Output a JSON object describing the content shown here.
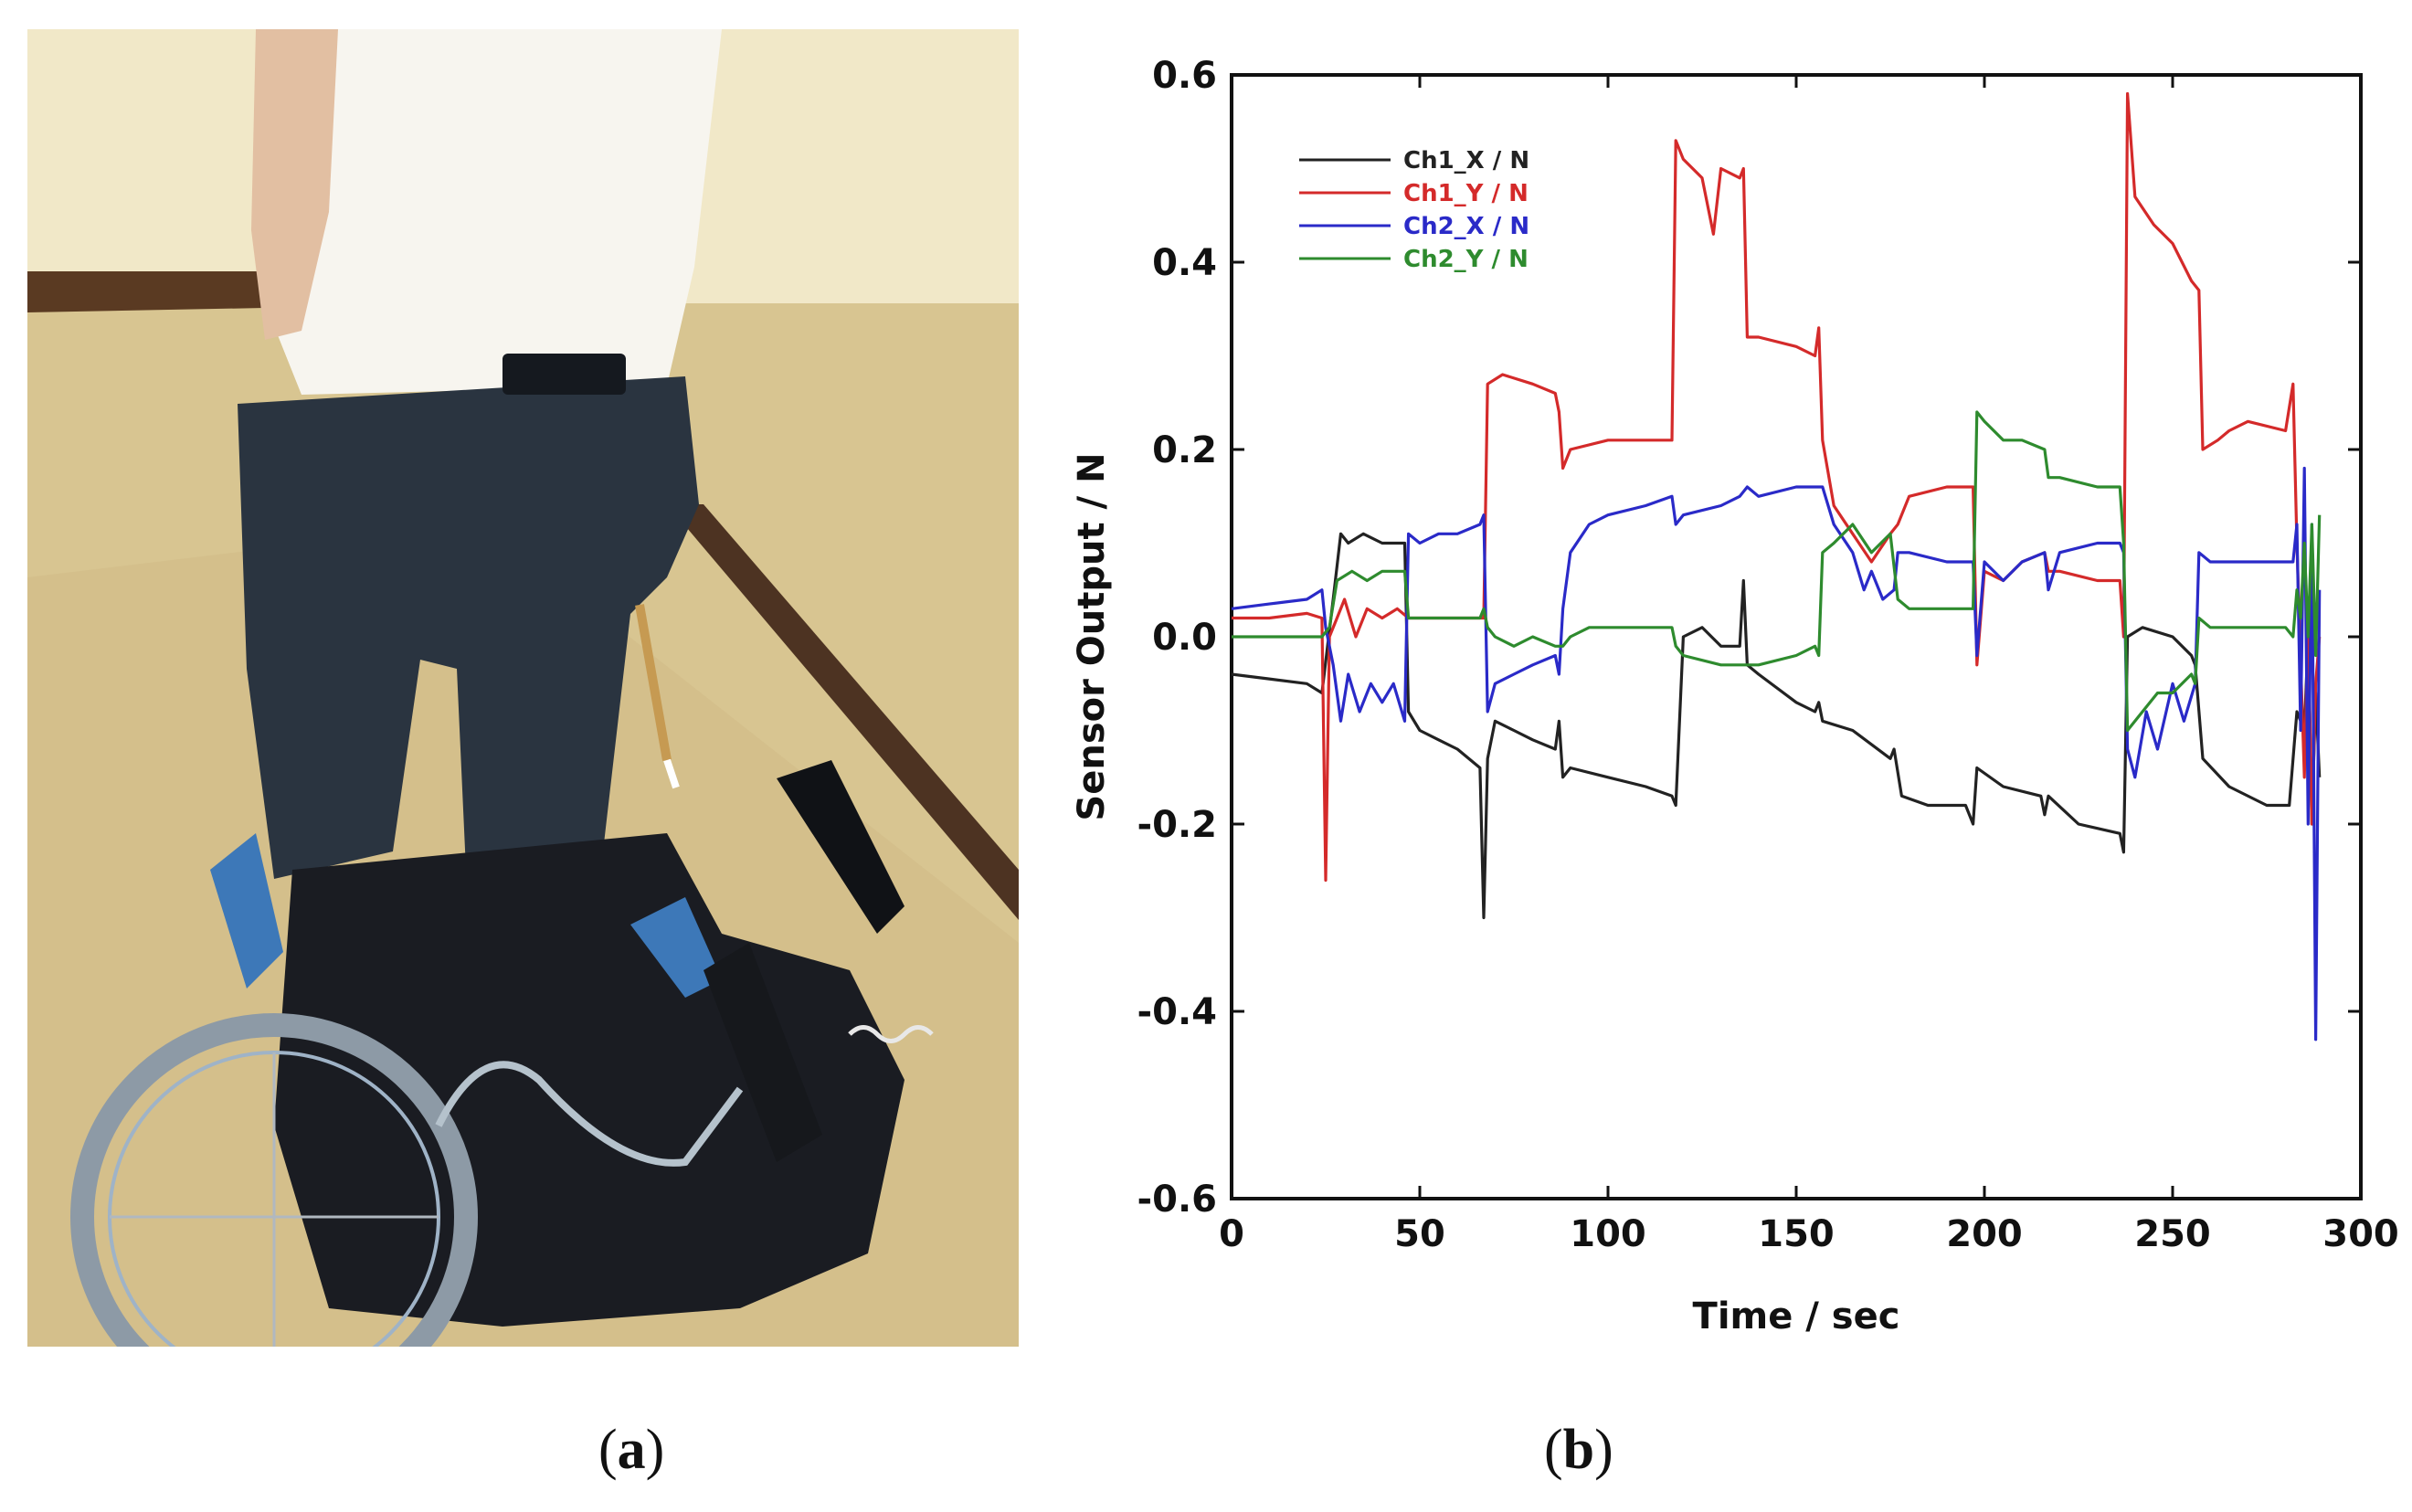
{
  "panels": {
    "a": {
      "caption": "a"
    },
    "b": {
      "caption": "b"
    }
  },
  "photo": {
    "description_icon": "photo-icon",
    "colors": {
      "floor": "#d9c792",
      "wall": "#f0e6c4",
      "shirt": "#f6f4ee",
      "jeans": "#2a3440",
      "chair": "#1a1c22",
      "frame": "#3d78b8"
    }
  },
  "chart_data": {
    "type": "line",
    "xlabel": "Time / sec",
    "ylabel": "Sensor Output / N",
    "xlim": [
      0,
      300
    ],
    "ylim": [
      -0.6,
      0.6
    ],
    "xticks": [
      "0",
      "50",
      "100",
      "150",
      "200",
      "250",
      "300"
    ],
    "yticks": [
      "0.6",
      "0.4",
      "0.2",
      "0.0",
      "-0.2",
      "-0.4",
      "-0.6"
    ],
    "grid": false,
    "legend_position": "top-left",
    "series": [
      {
        "name": "Ch1_X / N",
        "color": "#222222",
        "points": [
          [
            0,
            -0.04
          ],
          [
            10,
            -0.045
          ],
          [
            20,
            -0.05
          ],
          [
            24,
            -0.06
          ],
          [
            27,
            0.04
          ],
          [
            29,
            0.11
          ],
          [
            31,
            0.1
          ],
          [
            35,
            0.11
          ],
          [
            40,
            0.1
          ],
          [
            46,
            0.1
          ],
          [
            47,
            -0.08
          ],
          [
            50,
            -0.1
          ],
          [
            55,
            -0.11
          ],
          [
            60,
            -0.12
          ],
          [
            66,
            -0.14
          ],
          [
            67,
            -0.3
          ],
          [
            68,
            -0.13
          ],
          [
            70,
            -0.09
          ],
          [
            75,
            -0.1
          ],
          [
            80,
            -0.11
          ],
          [
            86,
            -0.12
          ],
          [
            87,
            -0.09
          ],
          [
            88,
            -0.15
          ],
          [
            90,
            -0.14
          ],
          [
            100,
            -0.15
          ],
          [
            110,
            -0.16
          ],
          [
            117,
            -0.17
          ],
          [
            118,
            -0.18
          ],
          [
            120,
            0.0
          ],
          [
            125,
            0.01
          ],
          [
            130,
            -0.01
          ],
          [
            135,
            -0.01
          ],
          [
            136,
            0.06
          ],
          [
            137,
            -0.03
          ],
          [
            140,
            -0.04
          ],
          [
            150,
            -0.07
          ],
          [
            155,
            -0.08
          ],
          [
            156,
            -0.07
          ],
          [
            157,
            -0.09
          ],
          [
            165,
            -0.1
          ],
          [
            175,
            -0.13
          ],
          [
            176,
            -0.12
          ],
          [
            178,
            -0.17
          ],
          [
            185,
            -0.18
          ],
          [
            195,
            -0.18
          ],
          [
            197,
            -0.2
          ],
          [
            198,
            -0.14
          ],
          [
            205,
            -0.16
          ],
          [
            215,
            -0.17
          ],
          [
            216,
            -0.19
          ],
          [
            217,
            -0.17
          ],
          [
            225,
            -0.2
          ],
          [
            236,
            -0.21
          ],
          [
            237,
            -0.23
          ],
          [
            238,
            0.0
          ],
          [
            242,
            0.01
          ],
          [
            250,
            0.0
          ],
          [
            255,
            -0.02
          ],
          [
            256,
            -0.03
          ],
          [
            258,
            -0.13
          ],
          [
            265,
            -0.16
          ],
          [
            275,
            -0.18
          ],
          [
            281,
            -0.18
          ],
          [
            283,
            -0.08
          ],
          [
            285,
            -0.1
          ],
          [
            286,
            0.0
          ],
          [
            287,
            -0.2
          ],
          [
            288,
            -0.06
          ],
          [
            289,
            -0.15
          ]
        ]
      },
      {
        "name": "Ch1_Y / N",
        "color": "#d42a2a",
        "points": [
          [
            0,
            0.02
          ],
          [
            10,
            0.02
          ],
          [
            20,
            0.025
          ],
          [
            24,
            0.02
          ],
          [
            25,
            -0.26
          ],
          [
            26,
            0.0
          ],
          [
            28,
            0.02
          ],
          [
            30,
            0.04
          ],
          [
            33,
            0.0
          ],
          [
            36,
            0.03
          ],
          [
            40,
            0.02
          ],
          [
            44,
            0.03
          ],
          [
            47,
            0.02
          ],
          [
            55,
            0.02
          ],
          [
            65,
            0.02
          ],
          [
            67,
            0.02
          ],
          [
            68,
            0.27
          ],
          [
            72,
            0.28
          ],
          [
            80,
            0.27
          ],
          [
            86,
            0.26
          ],
          [
            87,
            0.24
          ],
          [
            88,
            0.18
          ],
          [
            90,
            0.2
          ],
          [
            100,
            0.21
          ],
          [
            110,
            0.21
          ],
          [
            117,
            0.21
          ],
          [
            118,
            0.53
          ],
          [
            120,
            0.51
          ],
          [
            125,
            0.49
          ],
          [
            128,
            0.43
          ],
          [
            130,
            0.5
          ],
          [
            135,
            0.49
          ],
          [
            136,
            0.5
          ],
          [
            137,
            0.32
          ],
          [
            140,
            0.32
          ],
          [
            150,
            0.31
          ],
          [
            155,
            0.3
          ],
          [
            156,
            0.33
          ],
          [
            157,
            0.21
          ],
          [
            160,
            0.14
          ],
          [
            165,
            0.11
          ],
          [
            170,
            0.08
          ],
          [
            175,
            0.11
          ],
          [
            177,
            0.12
          ],
          [
            180,
            0.15
          ],
          [
            190,
            0.16
          ],
          [
            197,
            0.16
          ],
          [
            198,
            -0.03
          ],
          [
            200,
            0.07
          ],
          [
            205,
            0.06
          ],
          [
            210,
            0.08
          ],
          [
            216,
            0.09
          ],
          [
            217,
            0.07
          ],
          [
            220,
            0.07
          ],
          [
            230,
            0.06
          ],
          [
            236,
            0.06
          ],
          [
            237,
            0.0
          ],
          [
            238,
            0.58
          ],
          [
            240,
            0.47
          ],
          [
            245,
            0.44
          ],
          [
            250,
            0.42
          ],
          [
            255,
            0.38
          ],
          [
            257,
            0.37
          ],
          [
            258,
            0.2
          ],
          [
            262,
            0.21
          ],
          [
            265,
            0.22
          ],
          [
            270,
            0.23
          ],
          [
            280,
            0.22
          ],
          [
            282,
            0.27
          ],
          [
            283,
            0.1
          ],
          [
            285,
            -0.15
          ],
          [
            286,
            0.02
          ],
          [
            287,
            -0.2
          ],
          [
            288,
            -0.05
          ],
          [
            289,
            0.0
          ]
        ]
      },
      {
        "name": "Ch2_X / N",
        "color": "#2a2ac8",
        "points": [
          [
            0,
            0.03
          ],
          [
            10,
            0.035
          ],
          [
            20,
            0.04
          ],
          [
            24,
            0.05
          ],
          [
            25,
            0.01
          ],
          [
            27,
            -0.03
          ],
          [
            29,
            -0.09
          ],
          [
            31,
            -0.04
          ],
          [
            34,
            -0.08
          ],
          [
            37,
            -0.05
          ],
          [
            40,
            -0.07
          ],
          [
            43,
            -0.05
          ],
          [
            46,
            -0.09
          ],
          [
            47,
            0.11
          ],
          [
            50,
            0.1
          ],
          [
            55,
            0.11
          ],
          [
            60,
            0.11
          ],
          [
            66,
            0.12
          ],
          [
            67,
            0.13
          ],
          [
            68,
            -0.08
          ],
          [
            70,
            -0.05
          ],
          [
            75,
            -0.04
          ],
          [
            80,
            -0.03
          ],
          [
            86,
            -0.02
          ],
          [
            87,
            -0.04
          ],
          [
            88,
            0.03
          ],
          [
            90,
            0.09
          ],
          [
            95,
            0.12
          ],
          [
            100,
            0.13
          ],
          [
            110,
            0.14
          ],
          [
            117,
            0.15
          ],
          [
            118,
            0.12
          ],
          [
            120,
            0.13
          ],
          [
            130,
            0.14
          ],
          [
            135,
            0.15
          ],
          [
            137,
            0.16
          ],
          [
            140,
            0.15
          ],
          [
            150,
            0.16
          ],
          [
            155,
            0.16
          ],
          [
            157,
            0.16
          ],
          [
            160,
            0.12
          ],
          [
            165,
            0.09
          ],
          [
            168,
            0.05
          ],
          [
            170,
            0.07
          ],
          [
            173,
            0.04
          ],
          [
            176,
            0.05
          ],
          [
            177,
            0.09
          ],
          [
            180,
            0.09
          ],
          [
            190,
            0.08
          ],
          [
            197,
            0.08
          ],
          [
            198,
            -0.02
          ],
          [
            200,
            0.08
          ],
          [
            205,
            0.06
          ],
          [
            210,
            0.08
          ],
          [
            216,
            0.09
          ],
          [
            217,
            0.05
          ],
          [
            220,
            0.09
          ],
          [
            230,
            0.1
          ],
          [
            236,
            0.1
          ],
          [
            237,
            0.09
          ],
          [
            238,
            -0.12
          ],
          [
            240,
            -0.15
          ],
          [
            243,
            -0.08
          ],
          [
            246,
            -0.12
          ],
          [
            250,
            -0.05
          ],
          [
            253,
            -0.09
          ],
          [
            256,
            -0.05
          ],
          [
            257,
            0.09
          ],
          [
            260,
            0.08
          ],
          [
            270,
            0.08
          ],
          [
            280,
            0.08
          ],
          [
            282,
            0.08
          ],
          [
            283,
            0.12
          ],
          [
            284,
            -0.1
          ],
          [
            285,
            0.18
          ],
          [
            286,
            -0.2
          ],
          [
            287,
            0.12
          ],
          [
            288,
            -0.43
          ],
          [
            289,
            0.05
          ]
        ]
      },
      {
        "name": "Ch2_Y / N",
        "color": "#2e8b2e",
        "points": [
          [
            0,
            0.0
          ],
          [
            10,
            0.0
          ],
          [
            20,
            0.0
          ],
          [
            24,
            0.0
          ],
          [
            26,
            0.01
          ],
          [
            28,
            0.06
          ],
          [
            32,
            0.07
          ],
          [
            36,
            0.06
          ],
          [
            40,
            0.07
          ],
          [
            46,
            0.07
          ],
          [
            47,
            0.02
          ],
          [
            50,
            0.02
          ],
          [
            55,
            0.02
          ],
          [
            60,
            0.02
          ],
          [
            66,
            0.02
          ],
          [
            67,
            0.03
          ],
          [
            68,
            0.01
          ],
          [
            70,
            0.0
          ],
          [
            75,
            -0.01
          ],
          [
            80,
            0.0
          ],
          [
            86,
            -0.01
          ],
          [
            87,
            -0.01
          ],
          [
            88,
            -0.01
          ],
          [
            90,
            0.0
          ],
          [
            95,
            0.01
          ],
          [
            100,
            0.01
          ],
          [
            110,
            0.01
          ],
          [
            117,
            0.01
          ],
          [
            118,
            -0.01
          ],
          [
            120,
            -0.02
          ],
          [
            130,
            -0.03
          ],
          [
            137,
            -0.03
          ],
          [
            140,
            -0.03
          ],
          [
            150,
            -0.02
          ],
          [
            155,
            -0.01
          ],
          [
            156,
            -0.02
          ],
          [
            157,
            0.09
          ],
          [
            160,
            0.1
          ],
          [
            165,
            0.12
          ],
          [
            170,
            0.09
          ],
          [
            175,
            0.11
          ],
          [
            177,
            0.04
          ],
          [
            180,
            0.03
          ],
          [
            190,
            0.03
          ],
          [
            197,
            0.03
          ],
          [
            198,
            0.24
          ],
          [
            200,
            0.23
          ],
          [
            205,
            0.21
          ],
          [
            210,
            0.21
          ],
          [
            216,
            0.2
          ],
          [
            217,
            0.17
          ],
          [
            220,
            0.17
          ],
          [
            230,
            0.16
          ],
          [
            236,
            0.16
          ],
          [
            237,
            0.1
          ],
          [
            238,
            -0.1
          ],
          [
            242,
            -0.08
          ],
          [
            246,
            -0.06
          ],
          [
            250,
            -0.06
          ],
          [
            255,
            -0.04
          ],
          [
            256,
            -0.05
          ],
          [
            257,
            0.02
          ],
          [
            260,
            0.01
          ],
          [
            270,
            0.01
          ],
          [
            280,
            0.01
          ],
          [
            282,
            0.0
          ],
          [
            283,
            0.05
          ],
          [
            284,
            0.02
          ],
          [
            285,
            0.1
          ],
          [
            286,
            0.0
          ],
          [
            287,
            0.12
          ],
          [
            288,
            -0.02
          ],
          [
            289,
            0.13
          ]
        ]
      }
    ]
  }
}
